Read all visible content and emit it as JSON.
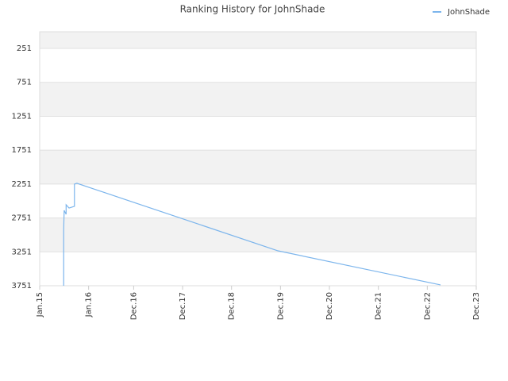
{
  "chart_data": {
    "type": "line",
    "title": "Ranking History for JohnShade",
    "x": [
      2015.49,
      2015.49,
      2015.5,
      2015.54,
      2015.54,
      2015.6,
      2015.71,
      2015.71,
      2015.76,
      2019.87,
      2023.19
    ],
    "series": [
      {
        "name": "JohnShade",
        "color": "#7cb5ec",
        "values": [
          3751,
          2931,
          2639,
          2698,
          2557,
          2604,
          2580,
          2252,
          2240,
          3236,
          3739
        ]
      }
    ],
    "xlim": [
      2015.0,
      2023.92
    ],
    "xticks": [
      {
        "value": 2015.0,
        "label": "Jan.15"
      },
      {
        "value": 2016.0,
        "label": "Jan.16"
      },
      {
        "value": 2016.92,
        "label": "Dec.16"
      },
      {
        "value": 2017.92,
        "label": "Dec.17"
      },
      {
        "value": 2018.92,
        "label": "Dec.18"
      },
      {
        "value": 2019.92,
        "label": "Dec.19"
      },
      {
        "value": 2020.92,
        "label": "Dec.20"
      },
      {
        "value": 2021.92,
        "label": "Dec.21"
      },
      {
        "value": 2022.92,
        "label": "Dec.22"
      },
      {
        "value": 2023.92,
        "label": "Dec.23"
      }
    ],
    "ylim": [
      3751,
      5
    ],
    "yticks": [
      251,
      751,
      1251,
      1751,
      2251,
      2751,
      3251,
      3751
    ],
    "grid": true,
    "legend": "top-right"
  }
}
